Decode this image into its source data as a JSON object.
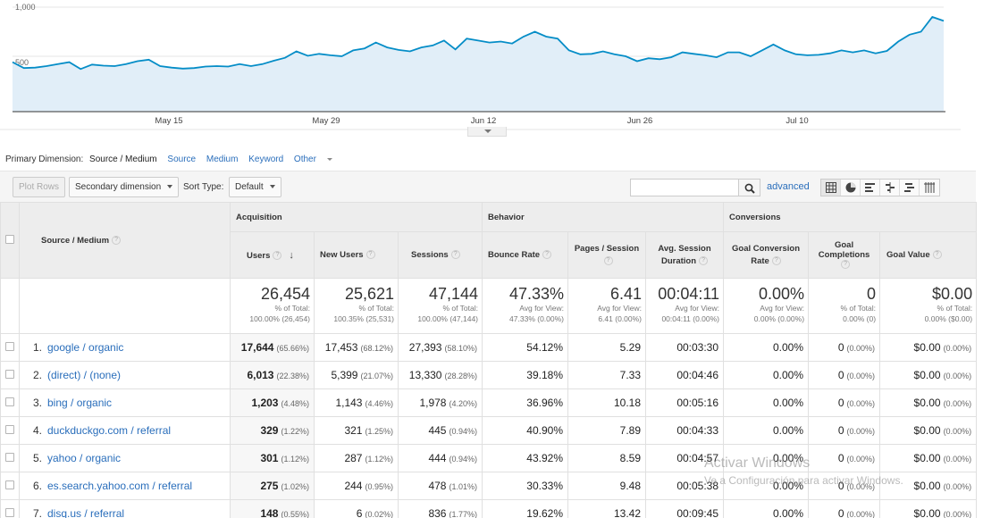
{
  "chart_data": {
    "type": "area",
    "series_name": "Users",
    "y_ticks": [
      "1,000",
      "500"
    ],
    "ylim": [
      0,
      1000
    ],
    "x_ticks": [
      "May 15",
      "May 29",
      "Jun 12",
      "Jun 26",
      "Jul 10"
    ],
    "values": [
      440,
      380,
      385,
      400,
      420,
      440,
      370,
      415,
      405,
      400,
      420,
      450,
      465,
      400,
      385,
      375,
      380,
      395,
      400,
      395,
      420,
      400,
      420,
      455,
      485,
      550,
      505,
      525,
      510,
      500,
      560,
      580,
      640,
      590,
      565,
      550,
      590,
      610,
      660,
      570,
      680,
      660,
      640,
      650,
      630,
      700,
      750,
      700,
      680,
      560,
      520,
      525,
      550,
      520,
      500,
      450,
      480,
      470,
      490,
      540,
      525,
      510,
      490,
      540,
      540,
      500,
      560,
      620,
      560,
      520,
      510,
      515,
      530,
      560,
      540,
      560,
      530,
      555,
      650,
      720,
      750,
      900,
      860
    ],
    "fill": "#e1eef8",
    "line": "#058dc7"
  },
  "primary_dimension": {
    "label": "Primary Dimension:",
    "active": "Source / Medium",
    "options": [
      "Source",
      "Medium",
      "Keyword",
      "Other"
    ]
  },
  "toolbar": {
    "plot_rows": "Plot Rows",
    "secondary_dimension": "Secondary dimension",
    "sort_type_label": "Sort Type:",
    "sort_type_value": "Default",
    "search_value": "",
    "advanced": "advanced"
  },
  "table": {
    "dimension_header": "Source / Medium",
    "groups": [
      "Acquisition",
      "Behavior",
      "Conversions"
    ],
    "columns": [
      "Users",
      "New Users",
      "Sessions",
      "Bounce Rate",
      "Pages / Session",
      "Avg. Session Duration",
      "Goal Conversion Rate",
      "Goal Completions",
      "Goal Value"
    ],
    "totals": [
      {
        "value": "26,454",
        "line1": "% of Total:",
        "line2": "100.00% (26,454)"
      },
      {
        "value": "25,621",
        "line1": "% of Total:",
        "line2": "100.35% (25,531)"
      },
      {
        "value": "47,144",
        "line1": "% of Total:",
        "line2": "100.00% (47,144)"
      },
      {
        "value": "47.33%",
        "line1": "Avg for View:",
        "line2": "47.33% (0.00%)"
      },
      {
        "value": "6.41",
        "line1": "Avg for View:",
        "line2": "6.41 (0.00%)"
      },
      {
        "value": "00:04:11",
        "line1": "Avg for View:",
        "line2": "00:04:11 (0.00%)"
      },
      {
        "value": "0.00%",
        "line1": "Avg for View:",
        "line2": "0.00% (0.00%)"
      },
      {
        "value": "0",
        "line1": "% of Total:",
        "line2": "0.00% (0)"
      },
      {
        "value": "$0.00",
        "line1": "% of Total:",
        "line2": "0.00% ($0.00)"
      }
    ],
    "rows": [
      {
        "idx": "1.",
        "source": "google / organic",
        "users": "17,644",
        "users_pct": "(65.66%)",
        "new_users": "17,453",
        "new_users_pct": "(68.12%)",
        "sessions": "27,393",
        "sessions_pct": "(58.10%)",
        "bounce": "54.12%",
        "pages": "5.29",
        "duration": "00:03:30",
        "gcr": "0.00%",
        "gc": "0",
        "gc_pct": "(0.00%)",
        "gv": "$0.00",
        "gv_pct": "(0.00%)"
      },
      {
        "idx": "2.",
        "source": "(direct) / (none)",
        "users": "6,013",
        "users_pct": "(22.38%)",
        "new_users": "5,399",
        "new_users_pct": "(21.07%)",
        "sessions": "13,330",
        "sessions_pct": "(28.28%)",
        "bounce": "39.18%",
        "pages": "7.33",
        "duration": "00:04:46",
        "gcr": "0.00%",
        "gc": "0",
        "gc_pct": "(0.00%)",
        "gv": "$0.00",
        "gv_pct": "(0.00%)"
      },
      {
        "idx": "3.",
        "source": "bing / organic",
        "users": "1,203",
        "users_pct": "(4.48%)",
        "new_users": "1,143",
        "new_users_pct": "(4.46%)",
        "sessions": "1,978",
        "sessions_pct": "(4.20%)",
        "bounce": "36.96%",
        "pages": "10.18",
        "duration": "00:05:16",
        "gcr": "0.00%",
        "gc": "0",
        "gc_pct": "(0.00%)",
        "gv": "$0.00",
        "gv_pct": "(0.00%)"
      },
      {
        "idx": "4.",
        "source": "duckduckgo.com / referral",
        "users": "329",
        "users_pct": "(1.22%)",
        "new_users": "321",
        "new_users_pct": "(1.25%)",
        "sessions": "445",
        "sessions_pct": "(0.94%)",
        "bounce": "40.90%",
        "pages": "7.89",
        "duration": "00:04:33",
        "gcr": "0.00%",
        "gc": "0",
        "gc_pct": "(0.00%)",
        "gv": "$0.00",
        "gv_pct": "(0.00%)"
      },
      {
        "idx": "5.",
        "source": "yahoo / organic",
        "users": "301",
        "users_pct": "(1.12%)",
        "new_users": "287",
        "new_users_pct": "(1.12%)",
        "sessions": "444",
        "sessions_pct": "(0.94%)",
        "bounce": "43.92%",
        "pages": "8.59",
        "duration": "00:04:57",
        "gcr": "0.00%",
        "gc": "0",
        "gc_pct": "(0.00%)",
        "gv": "$0.00",
        "gv_pct": "(0.00%)"
      },
      {
        "idx": "6.",
        "source": "es.search.yahoo.com / referral",
        "users": "275",
        "users_pct": "(1.02%)",
        "new_users": "244",
        "new_users_pct": "(0.95%)",
        "sessions": "478",
        "sessions_pct": "(1.01%)",
        "bounce": "30.33%",
        "pages": "9.48",
        "duration": "00:05:38",
        "gcr": "0.00%",
        "gc": "0",
        "gc_pct": "(0.00%)",
        "gv": "$0.00",
        "gv_pct": "(0.00%)"
      },
      {
        "idx": "7.",
        "source": "disq.us / referral",
        "users": "148",
        "users_pct": "(0.55%)",
        "new_users": "6",
        "new_users_pct": "(0.02%)",
        "sessions": "836",
        "sessions_pct": "(1.77%)",
        "bounce": "19.62%",
        "pages": "13.42",
        "duration": "00:09:45",
        "gcr": "0.00%",
        "gc": "0",
        "gc_pct": "(0.00%)",
        "gv": "$0.00",
        "gv_pct": "(0.00%)"
      }
    ]
  },
  "watermark": {
    "title": "Activar Windows",
    "subtitle": "Ve a Configuración para activar Windows."
  }
}
